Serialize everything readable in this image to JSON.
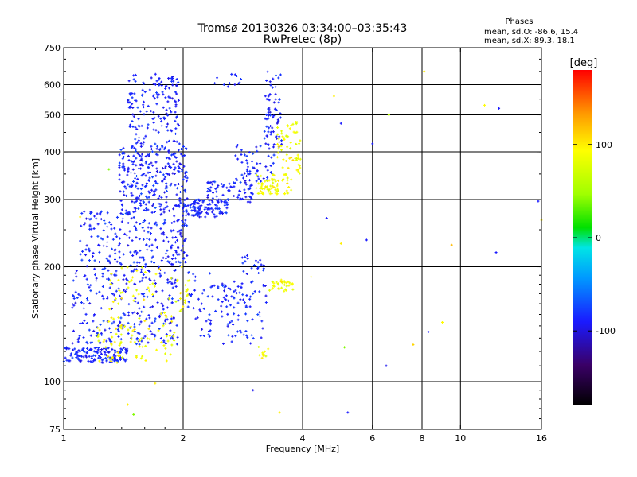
{
  "header": {
    "title_line1": "Tromsø 20130326 03:34:00–03:35:43",
    "title_line2": "RwPretec (8p)"
  },
  "stats": {
    "heading": "Phases",
    "o_line": "mean, sd,O: -86.6, 15.4",
    "x_line": "mean, sd,X:  89.3, 18.1"
  },
  "colorbar": {
    "unit_label": "[deg]",
    "ticks": [
      "100",
      "0",
      "-100"
    ],
    "tick_values": [
      100,
      0,
      -100
    ],
    "range": [
      -180,
      180
    ]
  },
  "chart_data": {
    "type": "scatter",
    "xlabel": "Frequency [MHz]",
    "ylabel": "Stationary phase Virtual Height [km]",
    "x_scale": "log",
    "y_scale": "log",
    "xlim": [
      1,
      16
    ],
    "ylim": [
      75,
      750
    ],
    "x_ticks": [
      1,
      2,
      4,
      6,
      8,
      10,
      16
    ],
    "x_tick_labels": [
      "1",
      "2",
      "4",
      "6",
      "8",
      "10",
      "16"
    ],
    "y_ticks": [
      75,
      100,
      200,
      300,
      400,
      500,
      600,
      750
    ],
    "y_tick_labels": [
      "75",
      "100",
      "200",
      "300",
      "400",
      "500",
      "600",
      "750"
    ],
    "x_minor": [
      1.2,
      1.4,
      1.6,
      1.8
    ],
    "grid": true,
    "o_trace": {
      "phase_mean": -86.6,
      "phase_sd": 15.4,
      "clusters": [
        {
          "freq": [
            1.0,
            1.45
          ],
          "height": [
            112,
            123
          ],
          "n": 140
        },
        {
          "freq": [
            1.05,
            1.95
          ],
          "height": [
            125,
            200
          ],
          "n": 260
        },
        {
          "freq": [
            1.1,
            2.05
          ],
          "height": [
            200,
            280
          ],
          "n": 240
        },
        {
          "freq": [
            1.38,
            2.05
          ],
          "height": [
            280,
            420
          ],
          "n": 280
        },
        {
          "freq": [
            1.45,
            1.95
          ],
          "height": [
            420,
            640
          ],
          "n": 150
        },
        {
          "freq": [
            2.0,
            2.6
          ],
          "height": [
            270,
            300
          ],
          "n": 110
        },
        {
          "freq": [
            2.3,
            3.0
          ],
          "height": [
            295,
            335
          ],
          "n": 70
        },
        {
          "freq": [
            2.7,
            3.4
          ],
          "height": [
            330,
            420
          ],
          "n": 60
        },
        {
          "freq": [
            3.2,
            3.55
          ],
          "height": [
            410,
            650
          ],
          "n": 70
        },
        {
          "freq": [
            2.05,
            2.4
          ],
          "height": [
            130,
            195
          ],
          "n": 40
        },
        {
          "freq": [
            2.4,
            3.3
          ],
          "height": [
            150,
            185
          ],
          "n": 60
        },
        {
          "freq": [
            2.5,
            3.2
          ],
          "height": [
            125,
            150
          ],
          "n": 30
        },
        {
          "freq": [
            2.8,
            3.2
          ],
          "height": [
            190,
            215
          ],
          "n": 20
        },
        {
          "freq": [
            2.3,
            2.8
          ],
          "height": [
            590,
            640
          ],
          "n": 12
        }
      ]
    },
    "x_trace": {
      "phase_mean": 89.3,
      "phase_sd": 18.1,
      "clusters": [
        {
          "freq": [
            1.2,
            1.9
          ],
          "height": [
            112,
            140
          ],
          "n": 70
        },
        {
          "freq": [
            1.3,
            2.0
          ],
          "height": [
            140,
            200
          ],
          "n": 60
        },
        {
          "freq": [
            3.05,
            3.75
          ],
          "height": [
            310,
            350
          ],
          "n": 70
        },
        {
          "freq": [
            3.45,
            3.95
          ],
          "height": [
            350,
            480
          ],
          "n": 60
        },
        {
          "freq": [
            3.3,
            3.8
          ],
          "height": [
            172,
            185
          ],
          "n": 35
        },
        {
          "freq": [
            3.1,
            3.3
          ],
          "height": [
            115,
            130
          ],
          "n": 10
        },
        {
          "freq": [
            1.9,
            2.1
          ],
          "height": [
            160,
            185
          ],
          "n": 15
        }
      ]
    },
    "outliers": [
      {
        "freq": 5.2,
        "height": 83,
        "phase": -90
      },
      {
        "freq": 6.5,
        "height": 110,
        "phase": -95
      },
      {
        "freq": 8.3,
        "height": 135,
        "phase": -90
      },
      {
        "freq": 9.0,
        "height": 143,
        "phase": 95
      },
      {
        "freq": 12.5,
        "height": 520,
        "phase": -90
      },
      {
        "freq": 11.5,
        "height": 530,
        "phase": 95
      },
      {
        "freq": 15.7,
        "height": 297,
        "phase": -90
      },
      {
        "freq": 16.0,
        "height": 265,
        "phase": 100
      },
      {
        "freq": 12.3,
        "height": 218,
        "phase": -90
      },
      {
        "freq": 9.5,
        "height": 228,
        "phase": 120
      },
      {
        "freq": 5.0,
        "height": 475,
        "phase": -90
      },
      {
        "freq": 5.8,
        "height": 235,
        "phase": -90
      },
      {
        "freq": 6.0,
        "height": 420,
        "phase": -90
      },
      {
        "freq": 4.6,
        "height": 268,
        "phase": -90
      },
      {
        "freq": 5.1,
        "height": 123,
        "phase": 40
      },
      {
        "freq": 8.1,
        "height": 650,
        "phase": 100
      },
      {
        "freq": 6.6,
        "height": 500,
        "phase": 60
      },
      {
        "freq": 3.0,
        "height": 95,
        "phase": -95
      },
      {
        "freq": 1.7,
        "height": 99,
        "phase": 100
      },
      {
        "freq": 1.45,
        "height": 87,
        "phase": 100
      },
      {
        "freq": 1.5,
        "height": 82,
        "phase": 40
      },
      {
        "freq": 3.5,
        "height": 83,
        "phase": 100
      },
      {
        "freq": 7.6,
        "height": 125,
        "phase": 110
      },
      {
        "freq": 4.2,
        "height": 188,
        "phase": 100
      },
      {
        "freq": 5.0,
        "height": 230,
        "phase": 100
      },
      {
        "freq": 4.8,
        "height": 560,
        "phase": 100
      },
      {
        "freq": 1.1,
        "height": 270,
        "phase": 100
      },
      {
        "freq": 1.3,
        "height": 360,
        "phase": 40
      }
    ]
  }
}
